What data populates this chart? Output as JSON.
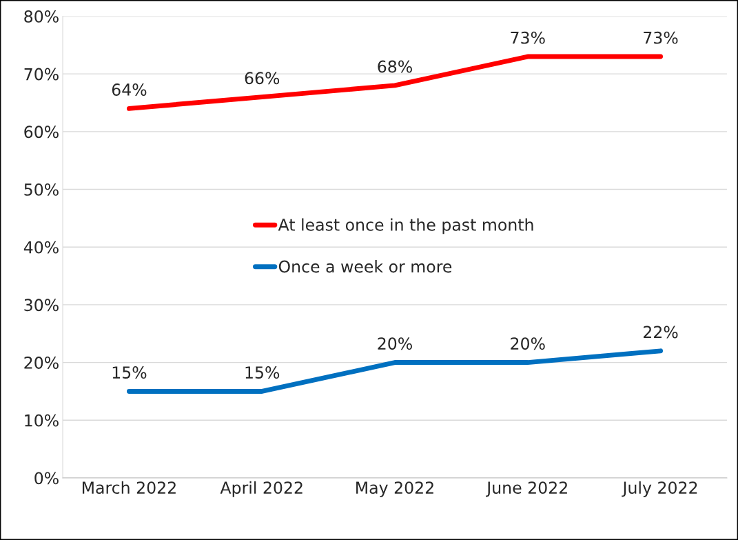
{
  "chart_data": {
    "type": "line",
    "categories": [
      "March 2022",
      "April 2022",
      "May 2022",
      "June 2022",
      "July 2022"
    ],
    "series": [
      {
        "name": "At least once in the past month",
        "color": "#ff0000",
        "values": [
          64,
          66,
          68,
          73,
          73
        ],
        "value_labels": [
          "64%",
          "66%",
          "68%",
          "73%",
          "73%"
        ]
      },
      {
        "name": "Once a week or more",
        "color": "#0070c0",
        "values": [
          15,
          15,
          20,
          20,
          22
        ],
        "value_labels": [
          "15%",
          "15%",
          "20%",
          "20%",
          "22%"
        ]
      }
    ],
    "ylim": [
      0,
      80
    ],
    "yticks": [
      {
        "value": 0,
        "label": "0%"
      },
      {
        "value": 10,
        "label": "10%"
      },
      {
        "value": 20,
        "label": "20%"
      },
      {
        "value": 30,
        "label": "30%"
      },
      {
        "value": 40,
        "label": "40%"
      },
      {
        "value": 50,
        "label": "50%"
      },
      {
        "value": 60,
        "label": "60%"
      },
      {
        "value": 70,
        "label": "70%"
      },
      {
        "value": 80,
        "label": "80%"
      }
    ],
    "grid": "y",
    "legend": "center",
    "marker": "none",
    "line_style": "solid"
  }
}
